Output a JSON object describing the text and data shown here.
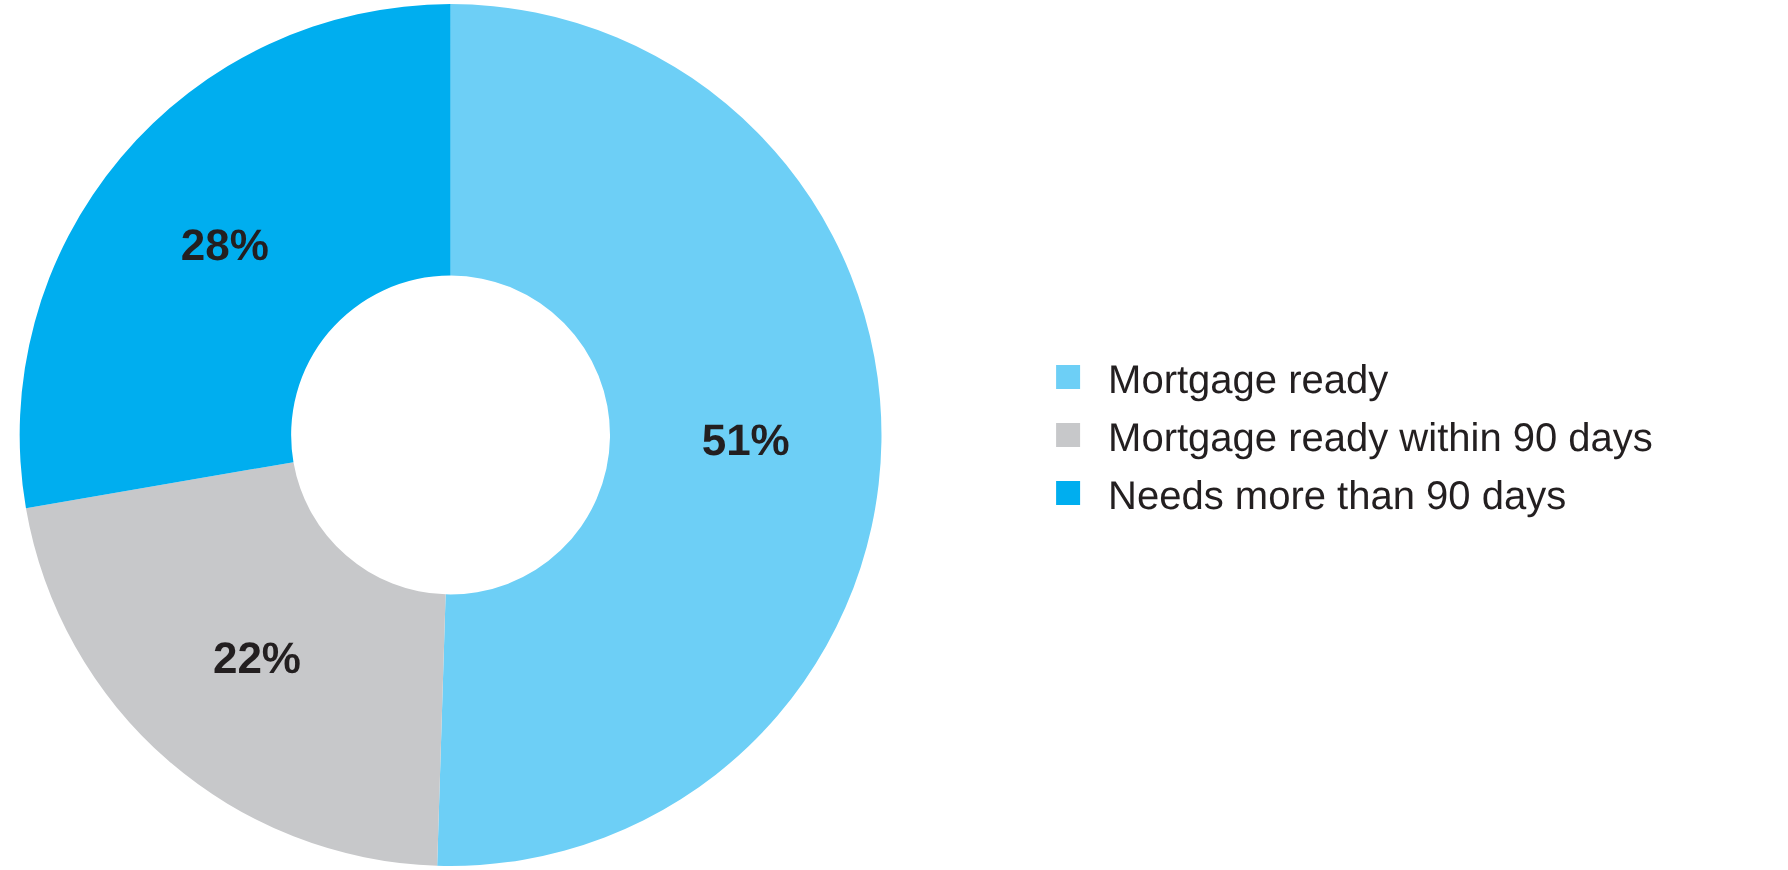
{
  "chart_data": {
    "type": "donut",
    "categories": [
      "Mortgage ready",
      "Mortgage ready within 90 days",
      "Needs more than 90 days"
    ],
    "values": [
      51,
      22,
      28
    ],
    "colors": [
      "#6dcff6",
      "#c7c8ca",
      "#00aeef"
    ],
    "value_labels": [
      "51%",
      "22%",
      "28%"
    ],
    "legend": "right"
  }
}
